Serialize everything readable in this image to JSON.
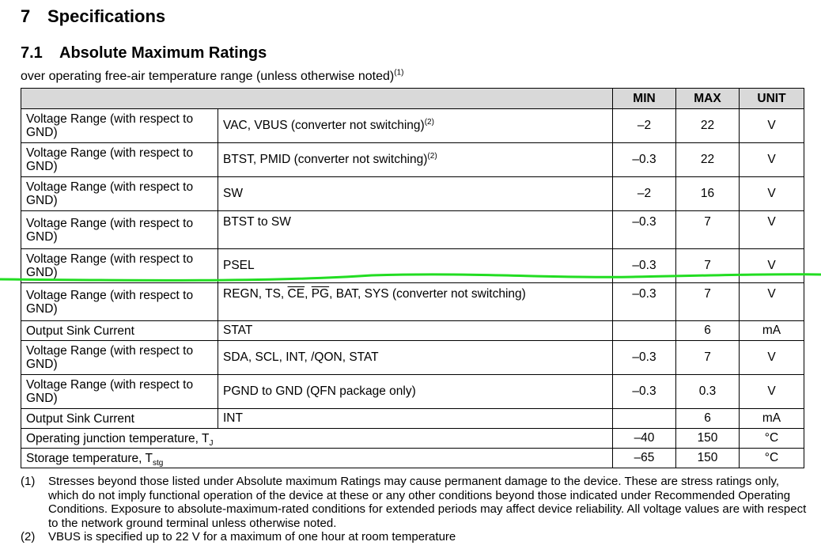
{
  "heading1": {
    "number": "7",
    "text": "Specifications"
  },
  "heading2": {
    "number": "7.1",
    "text": "Absolute Maximum Ratings"
  },
  "subtitle": {
    "text": "over operating free-air temperature range (unless otherwise noted)",
    "ref": "(1)"
  },
  "table": {
    "headers": {
      "min": "MIN",
      "max": "MAX",
      "unit": "UNIT"
    },
    "rows": [
      {
        "param": "Voltage Range (with respect to GND)",
        "cond": "VAC, VBUS (converter not switching)",
        "ref": "(2)",
        "min": "–2",
        "max": "22",
        "unit": "V"
      },
      {
        "param": "Voltage Range (with respect to GND)",
        "cond": "BTST, PMID (converter not switching)",
        "ref": "(2)",
        "min": "–0.3",
        "max": "22",
        "unit": "V"
      },
      {
        "param": "Voltage Range (with respect to GND)",
        "cond": "SW",
        "min": "–2",
        "max": "16",
        "unit": "V"
      },
      {
        "param": "Voltage Range (with respect to GND)",
        "cond": "BTST to SW",
        "min": "–0.3",
        "max": "7",
        "unit": "V"
      },
      {
        "param": "Voltage Range (with respect to GND)",
        "cond": "PSEL",
        "min": "–0.3",
        "max": "7",
        "unit": "V"
      },
      {
        "param": "Voltage Range (with respect to GND)",
        "cond_parts": {
          "a": "REGN, TS, ",
          "ce": "CE",
          "b": ", ",
          "pg": "PG",
          "c": ", BAT, SYS (converter not switching)"
        },
        "min": "–0.3",
        "max": "7",
        "unit": "V"
      },
      {
        "param": "Output Sink Current",
        "cond": "STAT",
        "min": "",
        "max": "6",
        "unit": "mA"
      },
      {
        "param": "Voltage Range (with respect to GND)",
        "cond": "SDA, SCL, INT, /QON, STAT",
        "min": "–0.3",
        "max": "7",
        "unit": "V"
      },
      {
        "param": "Voltage Range (with respect to GND)",
        "cond": "PGND to GND (QFN package only)",
        "min": "–0.3",
        "max": "0.3",
        "unit": "V"
      },
      {
        "param": "Output Sink Current",
        "cond": "INT",
        "min": "",
        "max": "6",
        "unit": "mA"
      },
      {
        "param": "Operating junction temperature, T",
        "param_sub": "J",
        "min": "–40",
        "max": "150",
        "unit": "°C"
      },
      {
        "param": "Storage temperature, T",
        "param_sub": "stg",
        "min": "–65",
        "max": "150",
        "unit": "°C"
      }
    ]
  },
  "annotation": {
    "color": "#22dd22"
  },
  "notes": [
    {
      "mark": "(1)",
      "text": "Stresses beyond those listed under Absolute maximum Ratings may cause permanent damage to the device. These are stress ratings only, which do not imply functional operation of the device at these or any other conditions beyond those indicated under Recommended Operating Conditions. Exposure to absolute-maximum-rated conditions for extended periods may affect device reliability. All voltage values are with respect to the network ground terminal unless otherwise noted."
    },
    {
      "mark": "(2)",
      "text": "VBUS is specified up to 22 V for a maximum of one hour at room temperature"
    }
  ]
}
